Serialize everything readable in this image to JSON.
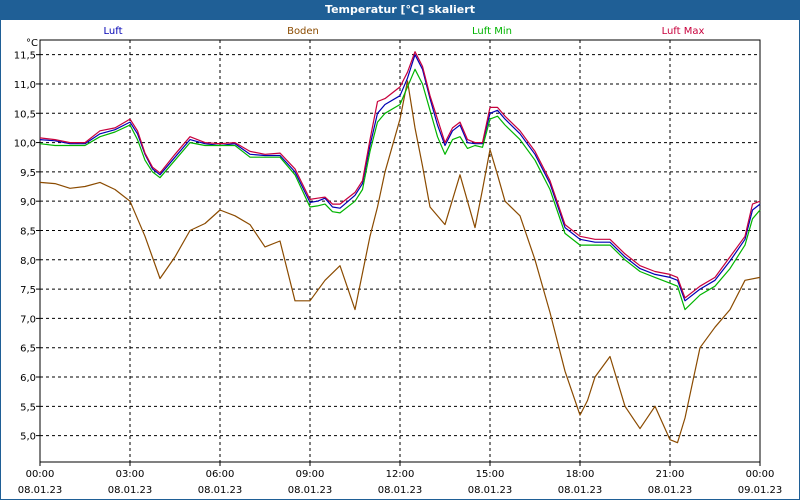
{
  "window": {
    "title": "Temperatur [°C] skaliert"
  },
  "chart_data": {
    "type": "line",
    "title": "Temperatur [°C] skaliert",
    "ylabel": "°C",
    "ylim": [
      4.55,
      11.75
    ],
    "yticks": [
      5.0,
      5.5,
      6.0,
      6.5,
      7.0,
      7.5,
      8.0,
      8.5,
      9.0,
      9.5,
      10.0,
      10.5,
      11.0,
      11.5
    ],
    "ytick_labels": [
      "5,0",
      "5,5",
      "6,0",
      "6,5",
      "7,0",
      "7,5",
      "8,0",
      "8,5",
      "9,0",
      "9,5",
      "10,0",
      "10,5",
      "11,0",
      "11,5"
    ],
    "x_range_hours": [
      0,
      24
    ],
    "xticks": [
      {
        "hour": 0,
        "time": "00:00",
        "date": "08.01.23"
      },
      {
        "hour": 3,
        "time": "03:00",
        "date": "08.01.23"
      },
      {
        "hour": 6,
        "time": "06:00",
        "date": "08.01.23"
      },
      {
        "hour": 9,
        "time": "09:00",
        "date": "08.01.23"
      },
      {
        "hour": 12,
        "time": "12:00",
        "date": "08.01.23"
      },
      {
        "hour": 15,
        "time": "15:00",
        "date": "08.01.23"
      },
      {
        "hour": 18,
        "time": "18:00",
        "date": "08.01.23"
      },
      {
        "hour": 21,
        "time": "21:00",
        "date": "08.01.23"
      },
      {
        "hour": 24,
        "time": "00:00",
        "date": "09.01.23"
      }
    ],
    "grid": true,
    "legend_position": "top",
    "series": [
      {
        "name": "Luft",
        "color": "#0000b4",
        "x": [
          0,
          0.5,
          1,
          1.5,
          2,
          2.5,
          3,
          3.25,
          3.5,
          3.75,
          4,
          4.5,
          5,
          5.5,
          6,
          6.5,
          7,
          7.5,
          8,
          8.5,
          9,
          9.25,
          9.5,
          9.75,
          10,
          10.5,
          10.75,
          11,
          11.25,
          11.5,
          12,
          12.25,
          12.5,
          12.75,
          13,
          13.25,
          13.5,
          13.75,
          14,
          14.25,
          14.5,
          14.75,
          15,
          15.25,
          15.5,
          16,
          16.5,
          17,
          17.5,
          18,
          18.5,
          19,
          19.5,
          20,
          20.5,
          21,
          21.25,
          21.5,
          22,
          22.5,
          23,
          23.5,
          23.75,
          24
        ],
        "y": [
          10.05,
          10.03,
          9.98,
          9.98,
          10.15,
          10.22,
          10.35,
          10.15,
          9.8,
          9.55,
          9.45,
          9.75,
          10.05,
          9.98,
          9.95,
          9.98,
          9.8,
          9.78,
          9.78,
          9.5,
          8.98,
          9.0,
          9.05,
          8.9,
          8.88,
          9.1,
          9.3,
          9.95,
          10.5,
          10.65,
          10.8,
          11.1,
          11.5,
          11.25,
          10.75,
          10.3,
          9.95,
          10.2,
          10.3,
          10.0,
          9.98,
          9.98,
          10.5,
          10.55,
          10.4,
          10.15,
          9.8,
          9.3,
          8.55,
          8.35,
          8.3,
          8.3,
          8.05,
          7.85,
          7.75,
          7.7,
          7.65,
          7.3,
          7.5,
          7.65,
          7.98,
          8.35,
          8.85,
          8.95
        ]
      },
      {
        "name": "Boden",
        "color": "#8b4b00",
        "x": [
          0,
          0.5,
          1,
          1.5,
          2,
          2.5,
          3,
          3.5,
          4,
          4.5,
          5,
          5.5,
          6,
          6.5,
          7,
          7.5,
          8,
          8.5,
          9,
          9.5,
          10,
          10.5,
          11,
          11.25,
          11.5,
          12,
          12.25,
          12.5,
          12.75,
          13,
          13.5,
          14,
          14.5,
          14.75,
          15,
          15.25,
          15.5,
          16,
          16.5,
          17,
          17.5,
          18,
          18.25,
          18.5,
          19,
          19.5,
          20,
          20.5,
          21,
          21.25,
          21.5,
          22,
          22.5,
          23,
          23.5,
          24
        ],
        "y": [
          9.32,
          9.3,
          9.22,
          9.25,
          9.32,
          9.2,
          9.0,
          8.4,
          7.68,
          8.05,
          8.5,
          8.62,
          8.85,
          8.75,
          8.6,
          8.22,
          8.32,
          7.3,
          7.3,
          7.65,
          7.9,
          7.15,
          8.4,
          8.9,
          9.5,
          10.4,
          11.05,
          10.25,
          9.6,
          8.9,
          8.6,
          9.45,
          8.55,
          9.2,
          9.88,
          9.45,
          9.0,
          8.75,
          8.0,
          7.1,
          6.1,
          5.35,
          5.6,
          6.0,
          6.35,
          5.5,
          5.12,
          5.5,
          4.93,
          4.88,
          5.3,
          6.5,
          6.85,
          7.15,
          7.65,
          7.7
        ]
      },
      {
        "name": "Luft Min",
        "color": "#00b400",
        "x": [
          0,
          0.5,
          1,
          1.5,
          2,
          2.5,
          3,
          3.25,
          3.5,
          3.75,
          4,
          4.5,
          5,
          5.5,
          6,
          6.5,
          7,
          7.5,
          8,
          8.5,
          9,
          9.25,
          9.5,
          9.75,
          10,
          10.5,
          10.75,
          11,
          11.25,
          11.5,
          12,
          12.25,
          12.5,
          12.75,
          13,
          13.25,
          13.5,
          13.75,
          14,
          14.25,
          14.5,
          14.75,
          15,
          15.25,
          15.5,
          16,
          16.5,
          17,
          17.5,
          18,
          18.5,
          19,
          19.5,
          20,
          20.5,
          21,
          21.25,
          21.5,
          22,
          22.5,
          23,
          23.5,
          23.75,
          24
        ],
        "y": [
          9.98,
          9.95,
          9.95,
          9.95,
          10.1,
          10.18,
          10.3,
          10.05,
          9.7,
          9.5,
          9.4,
          9.7,
          10.0,
          9.95,
          9.95,
          9.95,
          9.75,
          9.75,
          9.75,
          9.45,
          8.9,
          8.92,
          8.95,
          8.82,
          8.8,
          9.0,
          9.2,
          9.85,
          10.35,
          10.5,
          10.65,
          10.95,
          11.25,
          11.0,
          10.55,
          10.1,
          9.8,
          10.05,
          10.1,
          9.9,
          9.95,
          9.92,
          10.4,
          10.45,
          10.3,
          10.05,
          9.7,
          9.2,
          8.45,
          8.25,
          8.25,
          8.25,
          8.0,
          7.8,
          7.7,
          7.6,
          7.55,
          7.15,
          7.4,
          7.55,
          7.85,
          8.25,
          8.7,
          8.85
        ]
      },
      {
        "name": "Luft Max",
        "color": "#c8003c",
        "x": [
          0,
          0.5,
          1,
          1.5,
          2,
          2.5,
          3,
          3.25,
          3.5,
          3.75,
          4,
          4.5,
          5,
          5.5,
          6,
          6.5,
          7,
          7.5,
          8,
          8.5,
          9,
          9.25,
          9.5,
          9.75,
          10,
          10.5,
          10.75,
          11,
          11.25,
          11.5,
          12,
          12.25,
          12.5,
          12.75,
          13,
          13.25,
          13.5,
          13.75,
          14,
          14.25,
          14.5,
          14.75,
          15,
          15.25,
          15.5,
          16,
          16.5,
          17,
          17.5,
          18,
          18.5,
          19,
          19.5,
          20,
          20.5,
          21,
          21.25,
          21.5,
          22,
          22.5,
          23,
          23.5,
          23.75,
          24
        ],
        "y": [
          10.08,
          10.05,
          10.0,
          10.0,
          10.2,
          10.25,
          10.4,
          10.2,
          9.82,
          9.58,
          9.48,
          9.8,
          10.1,
          10.0,
          9.98,
          10.0,
          9.85,
          9.8,
          9.82,
          9.55,
          9.03,
          9.05,
          9.07,
          8.95,
          8.95,
          9.15,
          9.35,
          10.05,
          10.7,
          10.75,
          10.95,
          11.2,
          11.55,
          11.3,
          10.8,
          10.4,
          10.0,
          10.25,
          10.35,
          10.05,
          10.0,
          10.0,
          10.6,
          10.6,
          10.45,
          10.2,
          9.85,
          9.35,
          8.6,
          8.4,
          8.35,
          8.35,
          8.1,
          7.9,
          7.8,
          7.75,
          7.7,
          7.35,
          7.55,
          7.7,
          8.05,
          8.4,
          8.95,
          9.0
        ]
      }
    ]
  }
}
